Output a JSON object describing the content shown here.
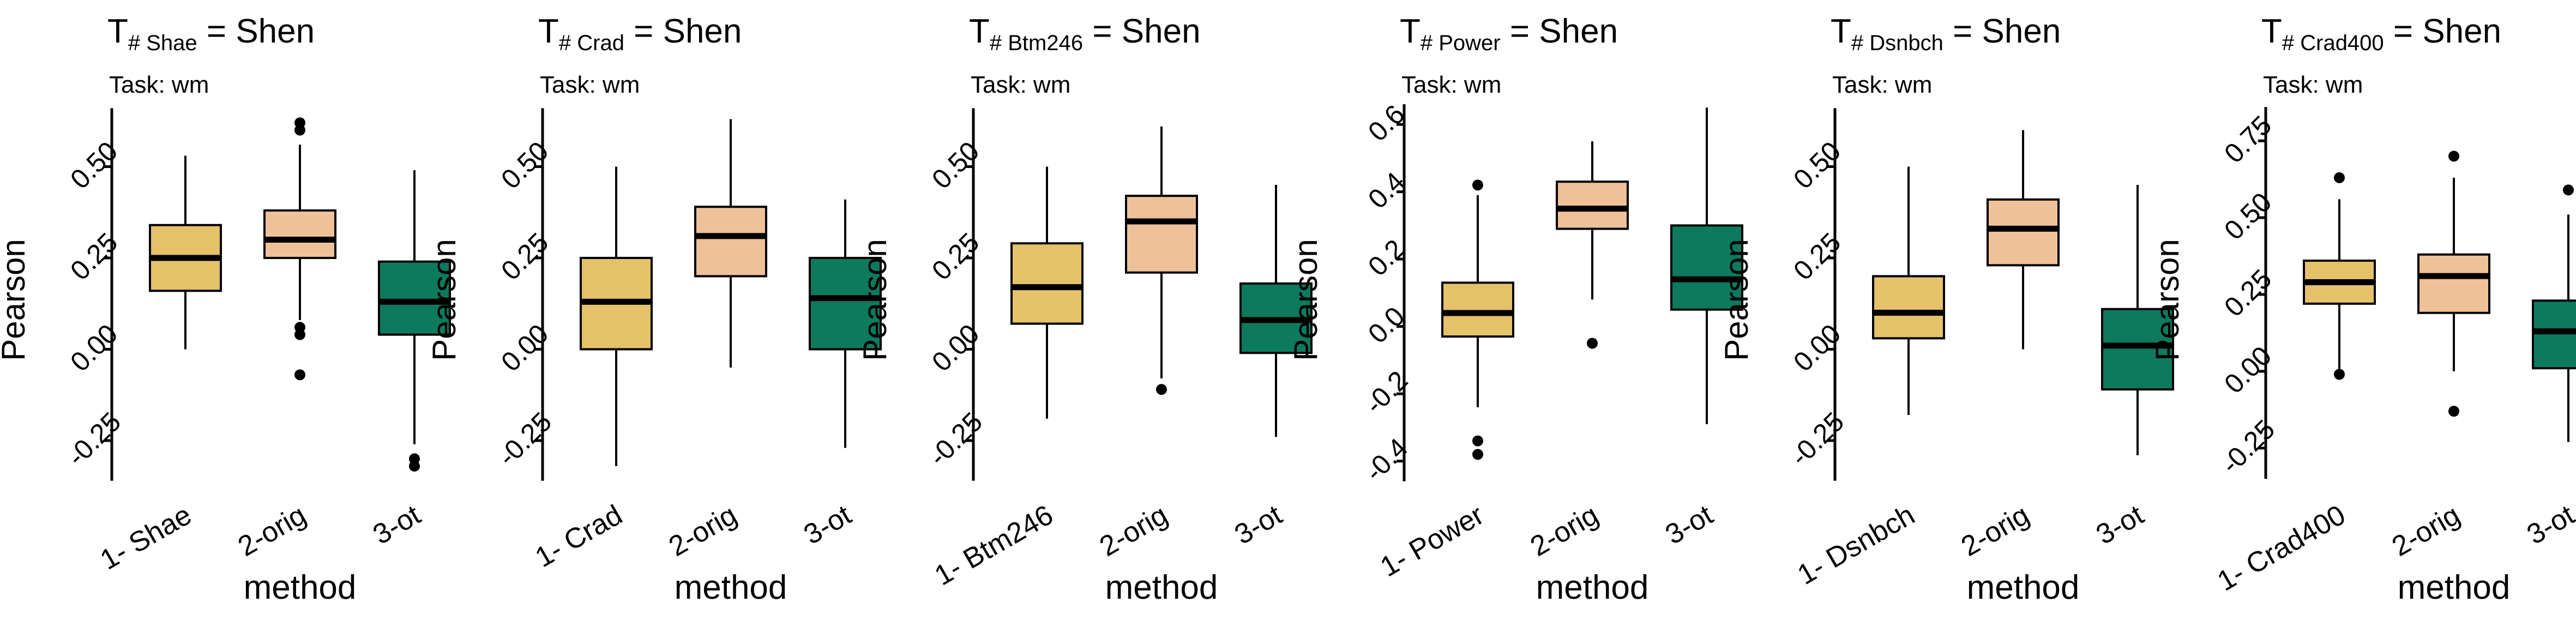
{
  "figure": {
    "colors": {
      "method_1": "#E5C16A",
      "method_2": "#EFC198",
      "method_3": "#0D7A5E",
      "median": "#000000",
      "axis": "#000000"
    },
    "subtitle": "Task:  wm"
  },
  "chart_data": [
    {
      "type": "box",
      "title_prefix": "T",
      "title_subscript": "# Shae",
      "title_suffix": " = Shen",
      "subtitle": "Task:  wm",
      "xlabel": "method",
      "ylabel": "Pearson",
      "categories": [
        "1- Shae",
        "2-orig",
        "3-ot"
      ],
      "yticks": [
        -0.25,
        0.0,
        0.25,
        0.5
      ],
      "ytick_labels": [
        "-0.25",
        "0.00",
        "0.25",
        "0.50"
      ],
      "ylim": [
        -0.38,
        0.68
      ],
      "axis_range": [
        -0.36,
        0.66
      ],
      "boxes": [
        {
          "low": 0.0,
          "q1": 0.16,
          "median": 0.25,
          "q3": 0.34,
          "high": 0.53,
          "outliers": []
        },
        {
          "low": 0.08,
          "q1": 0.25,
          "median": 0.3,
          "q3": 0.38,
          "high": 0.56,
          "outliers": [
            0.6,
            0.62,
            0.06,
            0.04,
            -0.07
          ]
        },
        {
          "low": -0.26,
          "q1": 0.04,
          "median": 0.13,
          "q3": 0.24,
          "high": 0.49,
          "outliers": [
            -0.3,
            -0.32
          ]
        }
      ]
    },
    {
      "type": "box",
      "title_prefix": "T",
      "title_subscript": "# Crad",
      "title_suffix": " = Shen",
      "subtitle": "Task:  wm",
      "xlabel": "method",
      "ylabel": "Pearson",
      "categories": [
        "1- Crad",
        "2-orig",
        "3-ot"
      ],
      "yticks": [
        -0.25,
        0.0,
        0.25,
        0.5
      ],
      "ytick_labels": [
        "-0.25",
        "0.00",
        "0.25",
        "0.50"
      ],
      "ylim": [
        -0.38,
        0.68
      ],
      "axis_range": [
        -0.36,
        0.66
      ],
      "boxes": [
        {
          "low": -0.32,
          "q1": 0.0,
          "median": 0.13,
          "q3": 0.25,
          "high": 0.5,
          "outliers": []
        },
        {
          "low": -0.05,
          "q1": 0.2,
          "median": 0.31,
          "q3": 0.39,
          "high": 0.63,
          "outliers": []
        },
        {
          "low": -0.27,
          "q1": 0.0,
          "median": 0.14,
          "q3": 0.25,
          "high": 0.41,
          "outliers": []
        }
      ]
    },
    {
      "type": "box",
      "title_prefix": "T",
      "title_subscript": "# Btm246",
      "title_suffix": " = Shen",
      "subtitle": "Task:  wm",
      "xlabel": "method",
      "ylabel": "Pearson",
      "categories": [
        "1- Btm246",
        "2-orig",
        "3-ot"
      ],
      "yticks": [
        -0.25,
        0.0,
        0.25,
        0.5
      ],
      "ytick_labels": [
        "-0.25",
        "0.00",
        "0.25",
        "0.50"
      ],
      "ylim": [
        -0.38,
        0.68
      ],
      "axis_range": [
        -0.36,
        0.66
      ],
      "boxes": [
        {
          "low": -0.19,
          "q1": 0.07,
          "median": 0.17,
          "q3": 0.29,
          "high": 0.5,
          "outliers": []
        },
        {
          "low": -0.08,
          "q1": 0.21,
          "median": 0.35,
          "q3": 0.42,
          "high": 0.61,
          "outliers": [
            -0.11
          ]
        },
        {
          "low": -0.24,
          "q1": -0.01,
          "median": 0.08,
          "q3": 0.18,
          "high": 0.45,
          "outliers": []
        }
      ]
    },
    {
      "type": "box",
      "title_prefix": "T",
      "title_subscript": "# Power",
      "title_suffix": " = Shen",
      "subtitle": "Task:  wm",
      "xlabel": "method",
      "ylabel": "Pearson",
      "categories": [
        "1- Power",
        "2-orig",
        "3-ot"
      ],
      "yticks": [
        -0.4,
        -0.2,
        0.0,
        0.2,
        0.4,
        0.6
      ],
      "ytick_labels": [
        "-0.4",
        "-0.2",
        "0.0",
        "0.2",
        "0.4",
        "0.6"
      ],
      "ylim": [
        -0.48,
        0.67
      ],
      "axis_range": [
        -0.46,
        0.66
      ],
      "boxes": [
        {
          "low": -0.24,
          "q1": -0.03,
          "median": 0.04,
          "q3": 0.13,
          "high": 0.39,
          "outliers": [
            0.42,
            -0.38,
            -0.34
          ]
        },
        {
          "low": 0.08,
          "q1": 0.29,
          "median": 0.35,
          "q3": 0.43,
          "high": 0.55,
          "outliers": [
            -0.05
          ]
        },
        {
          "low": -0.29,
          "q1": 0.05,
          "median": 0.14,
          "q3": 0.3,
          "high": 0.65,
          "outliers": []
        }
      ]
    },
    {
      "type": "box",
      "title_prefix": "T",
      "title_subscript": "# Dsnbch",
      "title_suffix": " = Shen",
      "subtitle": "Task:  wm",
      "xlabel": "method",
      "ylabel": "Pearson",
      "categories": [
        "1- Dsnbch",
        "2-orig",
        "3-ot"
      ],
      "yticks": [
        -0.25,
        0.0,
        0.25,
        0.5
      ],
      "ytick_labels": [
        "-0.25",
        "0.00",
        "0.25",
        "0.50"
      ],
      "ylim": [
        -0.38,
        0.68
      ],
      "axis_range": [
        -0.36,
        0.66
      ],
      "boxes": [
        {
          "low": -0.18,
          "q1": 0.03,
          "median": 0.1,
          "q3": 0.2,
          "high": 0.5,
          "outliers": []
        },
        {
          "low": 0.0,
          "q1": 0.23,
          "median": 0.33,
          "q3": 0.41,
          "high": 0.6,
          "outliers": []
        },
        {
          "low": -0.29,
          "q1": -0.11,
          "median": 0.01,
          "q3": 0.11,
          "high": 0.45,
          "outliers": []
        }
      ]
    },
    {
      "type": "box",
      "title_prefix": "T",
      "title_subscript": "# Crad400",
      "title_suffix": " = Shen",
      "subtitle": "Task:  wm",
      "xlabel": "method",
      "ylabel": "Pearson",
      "categories": [
        "1- Crad400",
        "2-orig",
        "3-ot"
      ],
      "yticks": [
        -0.25,
        0.0,
        0.25,
        0.5,
        0.75
      ],
      "ytick_labels": [
        "-0.25",
        "0.00",
        "0.25",
        "0.50",
        "0.75"
      ],
      "ylim": [
        -0.38,
        0.88
      ],
      "axis_range": [
        -0.35,
        0.86
      ],
      "boxes": [
        {
          "low": 0.0,
          "q1": 0.22,
          "median": 0.29,
          "q3": 0.36,
          "high": 0.56,
          "outliers": [
            0.63,
            -0.01
          ]
        },
        {
          "low": 0.0,
          "q1": 0.19,
          "median": 0.31,
          "q3": 0.38,
          "high": 0.63,
          "outliers": [
            0.7,
            -0.13
          ]
        },
        {
          "low": -0.23,
          "q1": 0.01,
          "median": 0.13,
          "q3": 0.23,
          "high": 0.51,
          "outliers": [
            0.59
          ]
        }
      ]
    }
  ]
}
